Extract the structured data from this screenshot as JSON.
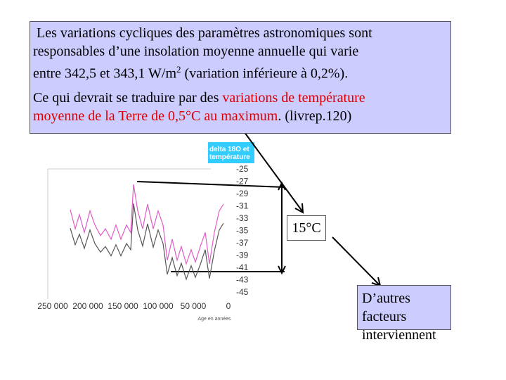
{
  "text_box": {
    "paragraph1": {
      "line1": "Les variations cycliques des paramètres astronomiques sont",
      "line2": "responsables  d’une insolation moyenne annuelle qui varie",
      "line3": "entre 342,5 et 343,1 W/m",
      "sup": "2",
      "line3_end": " (variation inférieure à 0,2%)."
    },
    "paragraph2": {
      "start": "Ce qui devrait se traduire par des ",
      "highlight1": "variations de température",
      "highlight2": "moyenne de la Terre de 0,5°C au maximum",
      "end": ". (livrep.120)"
    }
  },
  "label_amplitude": "15°C",
  "box_other": {
    "line1": "D’autres facteurs",
    "line2": "interviennent"
  },
  "chart_data": {
    "type": "line",
    "ylabel": "delta 18O et température",
    "xlabel": "Age en années",
    "xlim": [
      257000,
      -5000
    ],
    "ylim": [
      -46,
      -24
    ],
    "xticks": [
      {
        "value": 250000,
        "label": "250 000"
      },
      {
        "value": 200000,
        "label": "200 000"
      },
      {
        "value": 150000,
        "label": "150 000"
      },
      {
        "value": 100000,
        "label": "100 000"
      },
      {
        "value": 50000,
        "label": "50 000"
      },
      0
    ],
    "yticks": [
      -25,
      -27,
      -29,
      -31,
      -33,
      -35,
      -37,
      -39,
      -41,
      -43,
      -45
    ],
    "x": [
      225000,
      218000,
      212000,
      205000,
      197000,
      190000,
      182000,
      175000,
      167000,
      160000,
      153000,
      145000,
      139000,
      135000,
      129000,
      122000,
      115000,
      107000,
      100000,
      93000,
      87000,
      80000,
      73000,
      67000,
      60000,
      53000,
      47000,
      40000,
      33000,
      27000,
      20000,
      13000,
      7000
    ],
    "series": [
      {
        "color": "#e05cc8",
        "values": [
          -31.5,
          -34.6,
          -32.3,
          -35.2,
          -31.7,
          -34,
          -35.7,
          -34.6,
          -36.3,
          -34,
          -36.3,
          -34,
          -35.2,
          -27.4,
          -31.7,
          -34.6,
          -30.6,
          -34.6,
          -31.7,
          -34,
          -39.7,
          -36.3,
          -39.7,
          -37.5,
          -40.3,
          -38,
          -40,
          -37.5,
          -35.2,
          -40.3,
          -35.2,
          -31.7,
          -30.6
        ]
      },
      {
        "color": "#555555",
        "values": [
          -34.5,
          -37.2,
          -35.5,
          -37.8,
          -34.8,
          -37,
          -38.4,
          -37.5,
          -39,
          -37.2,
          -39,
          -37,
          -38,
          -30.5,
          -34.8,
          -37.4,
          -33.8,
          -37.6,
          -34.8,
          -37,
          -42,
          -39.3,
          -42.2,
          -40.2,
          -42.8,
          -40.6,
          -42.5,
          -40.4,
          -38,
          -42.7,
          -38.2,
          -34.8,
          -33.7
        ]
      }
    ]
  }
}
